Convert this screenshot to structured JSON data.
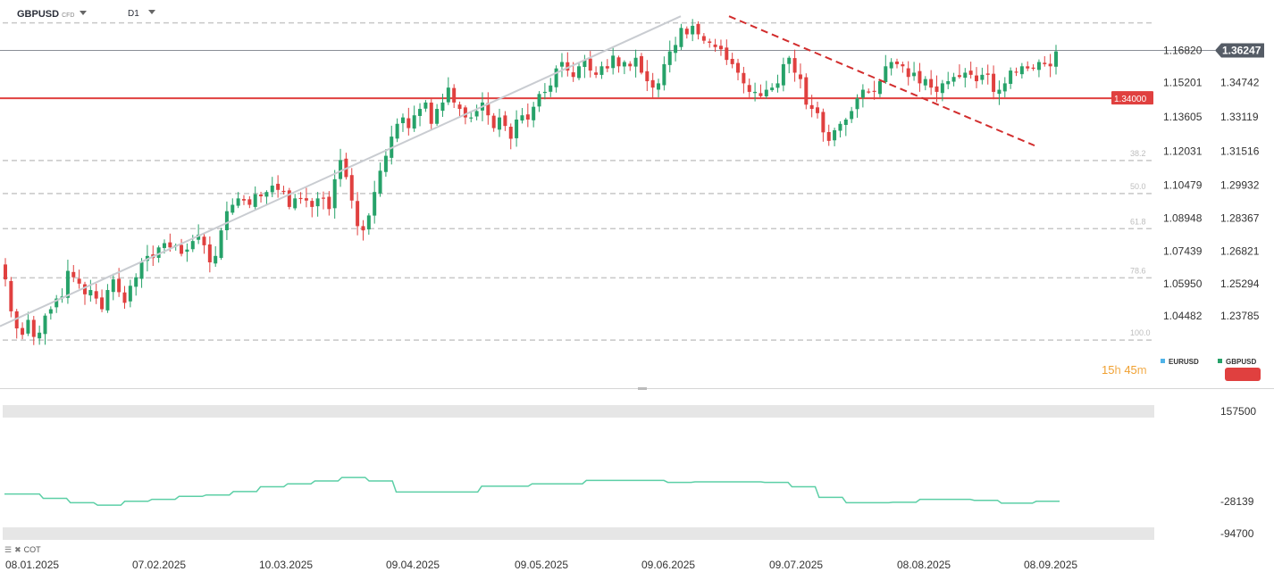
{
  "header": {
    "symbol": "GBPUSD",
    "badge": "CFD",
    "interval": "D1"
  },
  "colors": {
    "up": "#26a269",
    "down": "#e0403f",
    "trendline": "#d22d2d",
    "support": "#e0403f",
    "cot_line": "#5ccfa6",
    "rising_line": "#c9ccd1",
    "grid": "#c8c8c8",
    "price_tag": "#555c66",
    "eurusd_legend": "#4fb3e8",
    "gbpusd_legend": "#26a269"
  },
  "countdown": {
    "hours": "15",
    "h": "h",
    "minutes": "45",
    "m": "m"
  },
  "legend": {
    "eurusd": "EURUSD",
    "gbpusd": "GBPUSD"
  },
  "cot_label": "COT",
  "chart_data": [
    {
      "type": "candlestick",
      "symbol": "GBPUSD",
      "interval": "D1",
      "current_price": "1.36247",
      "support_level": "1.34000",
      "ylim": [
        1.2,
        1.38
      ],
      "left_axis_labels": [
        "1.16820",
        "1.15201",
        "1.13605",
        "1.12031",
        "1.10479",
        "1.08948",
        "1.07439",
        "1.05950",
        "1.04482"
      ],
      "right_axis_labels": [
        "1.36247",
        "1.34742",
        "1.33119",
        "1.31516",
        "1.29932",
        "1.28367",
        "1.26821",
        "1.25294",
        "1.23785"
      ],
      "right_axis_values": [
        1.34742,
        1.33119,
        1.31516,
        1.29932,
        1.28367,
        1.26821,
        1.25294,
        1.23785
      ],
      "fib_levels": [
        {
          "label": "38.2",
          "value": 1.3108
        },
        {
          "label": "50.0",
          "value": 1.2953
        },
        {
          "label": "61.8",
          "value": 1.2788
        },
        {
          "label": "78.6",
          "value": 1.2557
        },
        {
          "label": "100.0",
          "value": 1.2265
        }
      ],
      "dashed_levels": [
        1.3754,
        1.3108,
        1.2953,
        1.2788,
        1.2557,
        1.2265
      ],
      "x_labels": [
        "08.01.2025",
        "07.02.2025",
        "10.03.2025",
        "09.04.2025",
        "09.05.2025",
        "09.06.2025",
        "09.07.2025",
        "08.08.2025",
        "08.09.2025"
      ],
      "trendlines": [
        {
          "style": "solid",
          "from": [
            "08.01.2025",
            1.233
          ],
          "to": [
            "30.06.2025",
            1.38
          ]
        },
        {
          "style": "dashed",
          "from": [
            "02.07.2025",
            1.3785
          ],
          "to": [
            "12.09.2025",
            1.3178
          ]
        }
      ],
      "closes": [
        1.255,
        1.24,
        1.232,
        1.229,
        1.236,
        1.228,
        1.23,
        1.238,
        1.241,
        1.246,
        1.247,
        1.259,
        1.256,
        1.253,
        1.248,
        1.25,
        1.246,
        1.241,
        1.25,
        1.255,
        1.249,
        1.244,
        1.252,
        1.256,
        1.263,
        1.266,
        1.265,
        1.27,
        1.272,
        1.27,
        1.271,
        1.267,
        1.269,
        1.273,
        1.276,
        1.271,
        1.263,
        1.266,
        1.278,
        1.287,
        1.29,
        1.293,
        1.292,
        1.29,
        1.295,
        1.294,
        1.296,
        1.299,
        1.297,
        1.296,
        1.289,
        1.293,
        1.293,
        1.292,
        1.289,
        1.293,
        1.293,
        1.288,
        1.302,
        1.311,
        1.303,
        1.292,
        1.28,
        1.278,
        1.285,
        1.296,
        1.306,
        1.313,
        1.322,
        1.328,
        1.331,
        1.326,
        1.332,
        1.335,
        1.338,
        1.328,
        1.335,
        1.338,
        1.345,
        1.338,
        1.335,
        1.331,
        1.331,
        1.334,
        1.338,
        1.332,
        1.326,
        1.331,
        1.327,
        1.321,
        1.33,
        1.332,
        1.33,
        1.336,
        1.342,
        1.343,
        1.346,
        1.354,
        1.357,
        1.353,
        1.35,
        1.355,
        1.358,
        1.353,
        1.351,
        1.355,
        1.354,
        1.36,
        1.355,
        1.357,
        1.355,
        1.359,
        1.352,
        1.348,
        1.345,
        1.347,
        1.356,
        1.362,
        1.365,
        1.373,
        1.37,
        1.374,
        1.37,
        1.367,
        1.366,
        1.364,
        1.363,
        1.358,
        1.356,
        1.352,
        1.347,
        1.343,
        1.343,
        1.341,
        1.344,
        1.345,
        1.347,
        1.356,
        1.359,
        1.352,
        1.349,
        1.337,
        1.335,
        1.333,
        1.324,
        1.32,
        1.325,
        1.328,
        1.33,
        1.334,
        1.34,
        1.344,
        1.343,
        1.343,
        1.348,
        1.355,
        1.357,
        1.356,
        1.355,
        1.35,
        1.352,
        1.347,
        1.349,
        1.345,
        1.343,
        1.347,
        1.348,
        1.35,
        1.35,
        1.352,
        1.351,
        1.348,
        1.351,
        1.351,
        1.343,
        1.344,
        1.347,
        1.353,
        1.352,
        1.355,
        1.354,
        1.354,
        1.357,
        1.356,
        1.355,
        1.362
      ]
    },
    {
      "type": "line",
      "title": "COT",
      "right_axis_labels": [
        "157500",
        "-28139",
        "-94700"
      ],
      "ylim": [
        -94700,
        157500
      ],
      "current_value": -28139,
      "values": [
        -13000,
        -13000,
        -13000,
        -13000,
        -13000,
        -13000,
        -13000,
        -13000,
        -13000,
        -13000,
        -22000,
        -22000,
        -22000,
        -22000,
        -22000,
        -22000,
        -22000,
        -31000,
        -31000,
        -31000,
        -31000,
        -31000,
        -31000,
        -31000,
        -36000,
        -36000,
        -36000,
        -36000,
        -36000,
        -36000,
        -36000,
        -28000,
        -28000,
        -28000,
        -28000,
        -28000,
        -28000,
        -28000,
        -24000,
        -24000,
        -24000,
        -24000,
        -24000,
        -24000,
        -24000,
        -18000,
        -18000,
        -18000,
        -18000,
        -18000,
        -18000,
        -18000,
        -15000,
        -15000,
        -15000,
        -15000,
        -15000,
        -15000,
        -15000,
        -8000,
        -8000,
        -8000,
        -8000,
        -8000,
        -8000,
        -8000,
        2000,
        2000,
        2000,
        2000,
        2000,
        2000,
        2000,
        8000,
        8000,
        8000,
        8000,
        8000,
        8000,
        8000,
        14000,
        14000,
        14000,
        14000,
        14000,
        14000,
        14000,
        21000,
        21000,
        21000,
        21000,
        21000,
        21000,
        21000,
        14000,
        14000,
        14000,
        14000,
        14000,
        14000,
        14000,
        -9000,
        -9000,
        -9000,
        -9000,
        -9000,
        -9000,
        -9000,
        -9000,
        -9000,
        -9000,
        -9000,
        -9000,
        -9000,
        -9000,
        -9000,
        -9000,
        -9000,
        -9000,
        -9000,
        -9000,
        -9000,
        -9000,
        3000,
        3000,
        3000,
        3000,
        3000,
        3000,
        3000,
        3000,
        3000,
        3000,
        3000,
        3000,
        3000,
        8000,
        8000,
        8000,
        8000,
        8000,
        8000,
        8000,
        8000,
        8000,
        8000,
        8000,
        8000,
        8000,
        8000,
        15000,
        15000,
        15000,
        15000,
        15000,
        15000,
        15000,
        15000,
        15000,
        15000,
        15000,
        15000,
        15000,
        15000,
        15000,
        15000,
        15000,
        15000,
        15000,
        15000,
        15000,
        11000,
        11000,
        11000,
        11000,
        11000,
        11000,
        11000,
        12000,
        12000,
        12000,
        12000,
        12000,
        12000,
        12000,
        12000,
        12000,
        12000,
        12000,
        12000,
        12000,
        12000,
        12000,
        12000,
        12000,
        12000,
        11000,
        11000,
        11000,
        11000,
        11000,
        11000,
        11000,
        2000,
        2000,
        2000,
        2000,
        2000,
        2000,
        2000,
        -20000,
        -20000,
        -20000,
        -20000,
        -20000,
        -20000,
        -20000,
        -31000,
        -31000,
        -31000,
        -31000,
        -31000,
        -31000,
        -31000,
        -31000,
        -31000,
        -31000,
        -31000,
        -31000,
        -30000,
        -30000,
        -30000,
        -30000,
        -30000,
        -30000,
        -30000,
        -24000,
        -24000,
        -24000,
        -24000,
        -24000,
        -24000,
        -24000,
        -24000,
        -24000,
        -24000,
        -24000,
        -24000,
        -24000,
        -24000,
        -26000,
        -26000,
        -26000,
        -26000,
        -26000,
        -26000,
        -26000,
        -32000,
        -32000,
        -32000,
        -32000,
        -32000,
        -32000,
        -32000,
        -32000,
        -32000,
        -28139,
        -28139,
        -28139,
        -28139,
        -28139,
        -28139,
        -28139
      ]
    }
  ]
}
